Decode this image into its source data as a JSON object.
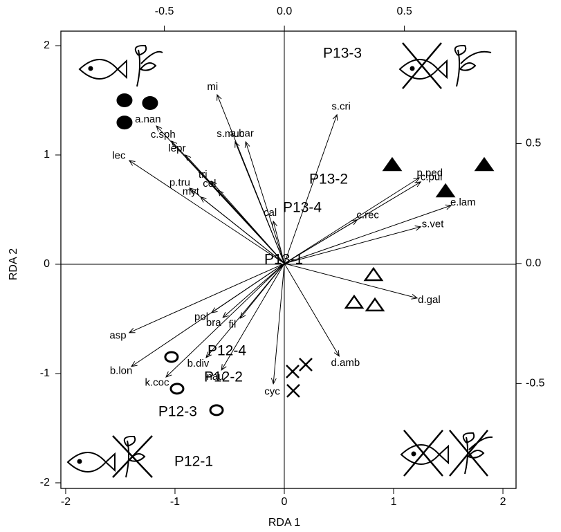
{
  "chart_data": {
    "type": "biplot",
    "xlabel": "RDA 1",
    "ylabel": "RDA 2",
    "xlim": [
      -2.044,
      2.12
    ],
    "ylim": [
      -2.051,
      2.133
    ],
    "xticks": [
      -2,
      -1,
      0,
      1,
      2
    ],
    "yticks": [
      -2,
      -1,
      0,
      1,
      2
    ],
    "x2lim": [
      -0.931,
      0.965
    ],
    "y2lim": [
      -0.937,
      0.968
    ],
    "x2ticks": [
      -0.5,
      {
        "value": 0,
        "label": "0.0"
      },
      {
        "value": 0.5,
        "label": "0.5"
      }
    ],
    "y2ticks": [
      -0.5,
      {
        "value": 0,
        "label": "0.0"
      },
      {
        "value": 0.5,
        "label": "0.5"
      }
    ],
    "color": "#000000",
    "species": {
      "names": [
        "mi",
        "s.cri",
        "a.nan",
        "c.sph",
        "lepr",
        "s.muc",
        "a.har",
        "lec",
        "tri",
        "col",
        "p.tru",
        "myt",
        "cal",
        "p.ped",
        "c.pul",
        "e.lam",
        "c.rec",
        "s.vet",
        "d.gal",
        "d.amb",
        "cyc",
        "fil",
        "pol",
        "bra",
        "asp",
        "b.lon",
        "k.coc",
        "b.div",
        "nau"
      ],
      "x": [
        -0.28,
        0.219,
        -0.533,
        -0.47,
        -0.412,
        -0.205,
        -0.161,
        -0.646,
        -0.305,
        -0.277,
        -0.395,
        -0.349,
        -0.046,
        0.562,
        0.568,
        0.695,
        0.303,
        0.568,
        0.553,
        0.228,
        -0.046,
        -0.184,
        -0.303,
        -0.256,
        -0.646,
        -0.637,
        -0.493,
        -0.326,
        -0.262
      ],
      "y": [
        0.703,
        0.62,
        0.573,
        0.51,
        0.452,
        0.507,
        0.507,
        0.429,
        0.343,
        0.305,
        0.314,
        0.277,
        0.176,
        0.357,
        0.34,
        0.242,
        0.182,
        0.153,
        -0.144,
        -0.386,
        -0.501,
        -0.228,
        -0.205,
        -0.225,
        -0.288,
        -0.429,
        -0.473,
        -0.392,
        -0.444
      ]
    },
    "sites": [
      {
        "marker": "filled-circle",
        "x": [
          -1.462,
          -1.228,
          -1.462
        ],
        "y": [
          1.5,
          1.475,
          1.297
        ]
      },
      {
        "marker": "filled-triangle",
        "x": [
          0.987,
          1.829,
          1.475
        ],
        "y": [
          0.911,
          0.911,
          0.671
        ]
      },
      {
        "marker": "open-triangle",
        "x": [
          0.816,
          0.639,
          0.829
        ],
        "y": [
          -0.095,
          -0.348,
          -0.373
        ]
      },
      {
        "marker": "cross",
        "x": [
          0.196,
          0.076,
          0.082
        ],
        "y": [
          -0.918,
          -0.981,
          -1.158
        ]
      },
      {
        "marker": "open-circle",
        "x": [
          -1.032,
          -0.981,
          -0.62
        ],
        "y": [
          -0.848,
          -1.139,
          -1.335
        ]
      }
    ],
    "centroids": {
      "labels": [
        "P13-3",
        "P13-2",
        "P13-4",
        "P13-1",
        "P12-4",
        "P12-2",
        "P12-3",
        "P12-1"
      ],
      "x": [
        0.532,
        0.405,
        0.165,
        -0.006,
        -0.525,
        -0.557,
        -0.975,
        -0.829
      ],
      "y": [
        1.924,
        0.772,
        0.513,
        0.038,
        -0.797,
        -1.038,
        -1.354,
        -1.81
      ]
    }
  }
}
